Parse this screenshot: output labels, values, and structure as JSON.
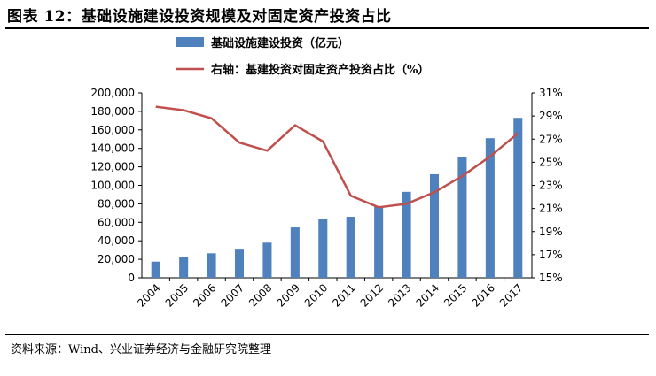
{
  "figure": {
    "title": "图表 12：基础设施建设投资规模及对固定资产投资占比",
    "source": "资料来源：Wind、兴业证券经济与金融研究院整理"
  },
  "colors": {
    "bar": "#4f81bd",
    "line": "#c0504d"
  },
  "chart_data": {
    "type": "bar",
    "categories": [
      "2004",
      "2005",
      "2006",
      "2007",
      "2008",
      "2009",
      "2010",
      "2011",
      "2012",
      "2013",
      "2014",
      "2015",
      "2016",
      "2017"
    ],
    "series": [
      {
        "name": "基础设施建设投资（亿元）",
        "type": "bar",
        "axis": "left",
        "values": [
          17500,
          22000,
          26500,
          30500,
          38000,
          54500,
          64000,
          66000,
          77000,
          93000,
          112000,
          131000,
          151000,
          173000
        ]
      },
      {
        "name": "右轴：基建投资对固定资产投资占比（%）",
        "type": "line",
        "axis": "right",
        "values": [
          29.8,
          29.5,
          28.8,
          26.7,
          26.0,
          28.2,
          26.8,
          22.1,
          21.1,
          21.4,
          22.4,
          23.8,
          25.5,
          27.5
        ]
      }
    ],
    "y_left": {
      "ylim": [
        0,
        200000
      ],
      "ticks": [
        "0",
        "20,000",
        "40,000",
        "60,000",
        "80,000",
        "100,000",
        "120,000",
        "140,000",
        "160,000",
        "180,000",
        "200,000"
      ]
    },
    "y_right": {
      "ylim": [
        15,
        31
      ],
      "ticks": [
        "15%",
        "17%",
        "19%",
        "21%",
        "23%",
        "25%",
        "27%",
        "29%",
        "31%"
      ]
    },
    "legend_position": "top-center",
    "grid": false
  }
}
